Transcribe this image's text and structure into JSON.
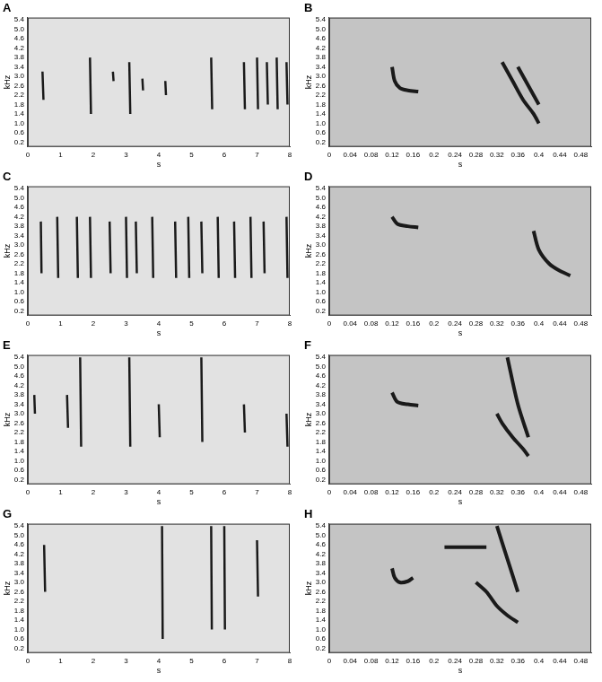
{
  "chart_data": [
    {
      "type": "line",
      "title": "A",
      "xlabel": "s",
      "ylabel": "kHz",
      "xlim": [
        0,
        8
      ],
      "ylim": [
        0,
        5.5
      ],
      "grid": false,
      "color": "#1a1a1a",
      "xticks": [
        0,
        1,
        2,
        3,
        4,
        5,
        6,
        7,
        8
      ],
      "yticks": [
        0.2,
        0.6,
        {
          "value": 1,
          "label": "1.0"
        },
        1.4,
        1.8,
        2.2,
        2.6,
        {
          "value": 3,
          "label": "3.0"
        },
        3.4,
        3.8,
        4.2,
        4.6,
        {
          "value": 5,
          "label": "5.0"
        },
        5.4
      ],
      "series": [
        {
          "x": [
            0.45,
            0.48
          ],
          "values": [
            3.2,
            2.0
          ]
        },
        {
          "x": [
            1.9,
            1.93
          ],
          "values": [
            3.8,
            1.4
          ]
        },
        {
          "x": [
            2.6,
            2.62
          ],
          "values": [
            3.2,
            2.8
          ]
        },
        {
          "x": [
            3.1,
            3.13
          ],
          "values": [
            3.6,
            1.4
          ]
        },
        {
          "x": [
            3.5,
            3.52
          ],
          "values": [
            2.9,
            2.4
          ]
        },
        {
          "x": [
            4.2,
            4.22
          ],
          "values": [
            2.8,
            2.2
          ]
        },
        {
          "x": [
            5.6,
            5.63
          ],
          "values": [
            3.8,
            1.6
          ]
        },
        {
          "x": [
            6.6,
            6.63
          ],
          "values": [
            3.6,
            1.6
          ]
        },
        {
          "x": [
            7.0,
            7.03
          ],
          "values": [
            3.8,
            1.6
          ]
        },
        {
          "x": [
            7.3,
            7.33
          ],
          "values": [
            3.6,
            1.8
          ]
        },
        {
          "x": [
            7.6,
            7.63
          ],
          "values": [
            3.8,
            1.6
          ]
        },
        {
          "x": [
            7.9,
            7.93
          ],
          "values": [
            3.6,
            1.8
          ]
        }
      ]
    },
    {
      "type": "line",
      "title": "B",
      "xlabel": "s",
      "ylabel": "kHz",
      "xlim": [
        0,
        0.5
      ],
      "ylim": [
        0,
        5.5
      ],
      "grid": false,
      "color": "#1a1a1a",
      "xticks": [
        0,
        0.04,
        0.08,
        0.12,
        0.16,
        0.2,
        0.24,
        0.28,
        0.32,
        0.36,
        0.4,
        0.44,
        0.48
      ],
      "yticks": [
        0.2,
        0.6,
        {
          "value": 1,
          "label": "1.0"
        },
        1.4,
        1.8,
        2.2,
        2.6,
        {
          "value": 3,
          "label": "3.0"
        },
        3.4,
        3.8,
        4.2,
        4.6,
        {
          "value": 5,
          "label": "5.0"
        },
        5.4
      ],
      "series": [
        {
          "x": [
            0.12,
            0.125,
            0.135,
            0.15,
            0.17
          ],
          "values": [
            3.4,
            2.8,
            2.5,
            2.4,
            2.35
          ]
        },
        {
          "x": [
            0.33,
            0.35,
            0.37,
            0.39,
            0.4
          ],
          "values": [
            3.6,
            2.8,
            2.0,
            1.4,
            1.0
          ]
        },
        {
          "x": [
            0.36,
            0.38,
            0.4
          ],
          "values": [
            3.4,
            2.6,
            1.8
          ]
        }
      ]
    },
    {
      "type": "line",
      "title": "C",
      "xlabel": "s",
      "ylabel": "kHz",
      "xlim": [
        0,
        8
      ],
      "ylim": [
        0,
        5.5
      ],
      "grid": false,
      "color": "#1a1a1a",
      "xticks": [
        0,
        1,
        2,
        3,
        4,
        5,
        6,
        7,
        8
      ],
      "yticks": [
        0.2,
        0.6,
        {
          "value": 1,
          "label": "1.0"
        },
        1.4,
        1.8,
        2.2,
        2.6,
        {
          "value": 3,
          "label": "3.0"
        },
        3.4,
        3.8,
        4.2,
        4.6,
        {
          "value": 5,
          "label": "5.0"
        },
        5.4
      ],
      "series": [
        {
          "x": [
            0.4,
            0.42
          ],
          "values": [
            4.0,
            1.8
          ]
        },
        {
          "x": [
            0.9,
            0.93
          ],
          "values": [
            4.2,
            1.6
          ]
        },
        {
          "x": [
            1.5,
            1.53
          ],
          "values": [
            4.2,
            1.6
          ]
        },
        {
          "x": [
            1.9,
            1.93
          ],
          "values": [
            4.2,
            1.6
          ]
        },
        {
          "x": [
            2.5,
            2.53
          ],
          "values": [
            4.0,
            1.8
          ]
        },
        {
          "x": [
            3.0,
            3.03
          ],
          "values": [
            4.2,
            1.6
          ]
        },
        {
          "x": [
            3.3,
            3.33
          ],
          "values": [
            4.0,
            1.8
          ]
        },
        {
          "x": [
            3.8,
            3.83
          ],
          "values": [
            4.2,
            1.6
          ]
        },
        {
          "x": [
            4.5,
            4.53
          ],
          "values": [
            4.0,
            1.6
          ]
        },
        {
          "x": [
            4.9,
            4.93
          ],
          "values": [
            4.2,
            1.6
          ]
        },
        {
          "x": [
            5.3,
            5.33
          ],
          "values": [
            4.0,
            1.8
          ]
        },
        {
          "x": [
            5.8,
            5.83
          ],
          "values": [
            4.2,
            1.6
          ]
        },
        {
          "x": [
            6.3,
            6.33
          ],
          "values": [
            4.0,
            1.6
          ]
        },
        {
          "x": [
            6.8,
            6.83
          ],
          "values": [
            4.2,
            1.6
          ]
        },
        {
          "x": [
            7.2,
            7.23
          ],
          "values": [
            4.0,
            1.8
          ]
        },
        {
          "x": [
            7.9,
            7.93
          ],
          "values": [
            4.2,
            1.6
          ]
        }
      ]
    },
    {
      "type": "line",
      "title": "D",
      "xlabel": "s",
      "ylabel": "kHz",
      "xlim": [
        0,
        0.5
      ],
      "ylim": [
        0,
        5.5
      ],
      "grid": false,
      "color": "#1a1a1a",
      "xticks": [
        0,
        0.04,
        0.08,
        0.12,
        0.16,
        0.2,
        0.24,
        0.28,
        0.32,
        0.36,
        0.4,
        0.44,
        0.48
      ],
      "yticks": [
        0.2,
        0.6,
        {
          "value": 1,
          "label": "1.0"
        },
        1.4,
        1.8,
        2.2,
        2.6,
        {
          "value": 3,
          "label": "3.0"
        },
        3.4,
        3.8,
        4.2,
        4.6,
        {
          "value": 5,
          "label": "5.0"
        },
        5.4
      ],
      "series": [
        {
          "x": [
            0.12,
            0.13,
            0.15,
            0.17
          ],
          "values": [
            4.2,
            3.9,
            3.8,
            3.75
          ]
        },
        {
          "x": [
            0.39,
            0.4,
            0.42,
            0.44,
            0.46
          ],
          "values": [
            3.6,
            2.8,
            2.2,
            1.9,
            1.7
          ]
        }
      ]
    },
    {
      "type": "line",
      "title": "E",
      "xlabel": "s",
      "ylabel": "kHz",
      "xlim": [
        0,
        8
      ],
      "ylim": [
        0,
        5.5
      ],
      "grid": false,
      "color": "#1a1a1a",
      "xticks": [
        0,
        1,
        2,
        3,
        4,
        5,
        6,
        7,
        8
      ],
      "yticks": [
        0.2,
        0.6,
        {
          "value": 1,
          "label": "1.0"
        },
        1.4,
        1.8,
        2.2,
        2.6,
        {
          "value": 3,
          "label": "3.0"
        },
        3.4,
        3.8,
        4.2,
        4.6,
        {
          "value": 5,
          "label": "5.0"
        },
        5.4
      ],
      "series": [
        {
          "x": [
            0.2,
            0.22
          ],
          "values": [
            3.8,
            3.0
          ]
        },
        {
          "x": [
            1.2,
            1.23
          ],
          "values": [
            3.8,
            2.4
          ]
        },
        {
          "x": [
            1.6,
            1.63
          ],
          "values": [
            5.4,
            1.6
          ]
        },
        {
          "x": [
            3.1,
            3.13
          ],
          "values": [
            5.4,
            1.6
          ]
        },
        {
          "x": [
            4.0,
            4.03
          ],
          "values": [
            3.4,
            2.0
          ]
        },
        {
          "x": [
            5.3,
            5.33
          ],
          "values": [
            5.4,
            1.8
          ]
        },
        {
          "x": [
            6.6,
            6.63
          ],
          "values": [
            3.4,
            2.2
          ]
        },
        {
          "x": [
            7.9,
            7.93
          ],
          "values": [
            3.0,
            1.6
          ]
        }
      ]
    },
    {
      "type": "line",
      "title": "F",
      "xlabel": "s",
      "ylabel": "kHz",
      "xlim": [
        0,
        0.5
      ],
      "ylim": [
        0,
        5.5
      ],
      "grid": false,
      "color": "#1a1a1a",
      "xticks": [
        0,
        0.04,
        0.08,
        0.12,
        0.16,
        0.2,
        0.24,
        0.28,
        0.32,
        0.36,
        0.4,
        0.44,
        0.48
      ],
      "yticks": [
        0.2,
        0.6,
        {
          "value": 1,
          "label": "1.0"
        },
        1.4,
        1.8,
        2.2,
        2.6,
        {
          "value": 3,
          "label": "3.0"
        },
        3.4,
        3.8,
        4.2,
        4.6,
        {
          "value": 5,
          "label": "5.0"
        },
        5.4
      ],
      "series": [
        {
          "x": [
            0.12,
            0.13,
            0.15,
            0.17
          ],
          "values": [
            3.9,
            3.5,
            3.4,
            3.35
          ]
        },
        {
          "x": [
            0.32,
            0.33,
            0.35,
            0.37,
            0.38
          ],
          "values": [
            3.0,
            2.6,
            2.0,
            1.5,
            1.2
          ]
        },
        {
          "x": [
            0.34,
            0.36,
            0.38
          ],
          "values": [
            5.4,
            3.4,
            2.0
          ]
        }
      ]
    },
    {
      "type": "line",
      "title": "G",
      "xlabel": "s",
      "ylabel": "kHz",
      "xlim": [
        0,
        8
      ],
      "ylim": [
        0,
        5.5
      ],
      "grid": false,
      "color": "#1a1a1a",
      "xticks": [
        0,
        1,
        2,
        3,
        4,
        5,
        6,
        7,
        8
      ],
      "yticks": [
        0.2,
        0.6,
        {
          "value": 1,
          "label": "1.0"
        },
        1.4,
        1.8,
        2.2,
        2.6,
        {
          "value": 3,
          "label": "3.0"
        },
        3.4,
        3.8,
        4.2,
        4.6,
        {
          "value": 5,
          "label": "5.0"
        },
        5.4
      ],
      "series": [
        {
          "x": [
            0.5,
            0.53
          ],
          "values": [
            4.6,
            2.6
          ]
        },
        {
          "x": [
            4.1,
            4.12
          ],
          "values": [
            5.4,
            0.6
          ]
        },
        {
          "x": [
            5.6,
            5.62
          ],
          "values": [
            5.4,
            1.0
          ]
        },
        {
          "x": [
            6.0,
            6.02
          ],
          "values": [
            5.4,
            1.0
          ]
        },
        {
          "x": [
            7.0,
            7.03
          ],
          "values": [
            4.8,
            2.4
          ]
        }
      ]
    },
    {
      "type": "line",
      "title": "H",
      "xlabel": "s",
      "ylabel": "kHz",
      "xlim": [
        0,
        0.5
      ],
      "ylim": [
        0,
        5.5
      ],
      "grid": false,
      "color": "#1a1a1a",
      "xticks": [
        0,
        0.04,
        0.08,
        0.12,
        0.16,
        0.2,
        0.24,
        0.28,
        0.32,
        0.36,
        0.4,
        0.44,
        0.48
      ],
      "yticks": [
        0.2,
        0.6,
        {
          "value": 1,
          "label": "1.0"
        },
        1.4,
        1.8,
        2.2,
        2.6,
        {
          "value": 3,
          "label": "3.0"
        },
        3.4,
        3.8,
        4.2,
        4.6,
        {
          "value": 5,
          "label": "5.0"
        },
        5.4
      ],
      "series": [
        {
          "x": [
            0.12,
            0.125,
            0.135,
            0.15,
            0.16
          ],
          "values": [
            3.6,
            3.2,
            3.0,
            3.05,
            3.2
          ]
        },
        {
          "x": [
            0.28,
            0.3,
            0.32,
            0.34,
            0.36
          ],
          "values": [
            3.0,
            2.6,
            2.0,
            1.6,
            1.3
          ]
        },
        {
          "x": [
            0.32,
            0.34,
            0.36
          ],
          "values": [
            5.4,
            4.0,
            2.6
          ]
        },
        {
          "x": [
            0.22,
            0.3
          ],
          "values": [
            4.5,
            4.5
          ]
        }
      ]
    }
  ]
}
